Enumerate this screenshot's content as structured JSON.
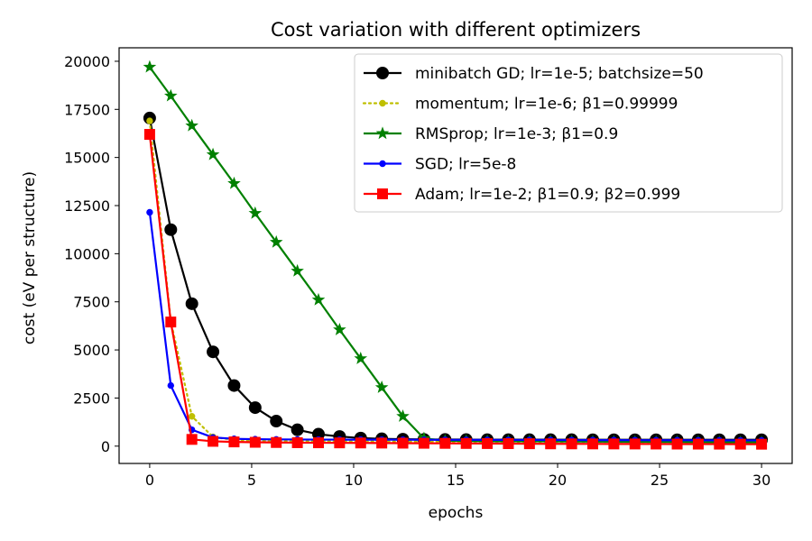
{
  "chart_data": {
    "type": "line",
    "title": "Cost variation with different optimizers",
    "xlabel": "epochs",
    "ylabel": "cost (eV per structure)",
    "xlim": [
      -1.5,
      31.5
    ],
    "ylim": [
      -900,
      20700
    ],
    "xticks": [
      0,
      5,
      10,
      15,
      20,
      25,
      30
    ],
    "yticks": [
      0,
      2500,
      5000,
      7500,
      10000,
      12500,
      15000,
      17500,
      20000
    ],
    "grid": false,
    "legend_position": "top-right",
    "series": [
      {
        "name": "minibatch GD; lr=1e-5;  batchsize=50",
        "color": "#000000",
        "line_style": "solid",
        "marker": "circle",
        "x": [
          0,
          1.0345,
          2.069,
          3.1034,
          4.1379,
          5.1724,
          6.2069,
          7.2414,
          8.2759,
          9.3103,
          10.3448,
          11.3793,
          12.4138,
          13.4483,
          14.4828,
          15.5172,
          16.5517,
          17.5862,
          18.6207,
          19.6552,
          20.6897,
          21.7241,
          22.7586,
          23.7931,
          24.8276,
          25.8621,
          26.8966,
          27.931,
          28.9655,
          30
        ],
        "y": [
          17050,
          11250,
          7400,
          4900,
          3150,
          2000,
          1300,
          850,
          620,
          500,
          420,
          380,
          360,
          350,
          345,
          340,
          338,
          336,
          335,
          334,
          333,
          332,
          331,
          330,
          330,
          330,
          330,
          330,
          330,
          330
        ]
      },
      {
        "name": "momentum;  lr=1e-6;  β1=0.99999",
        "color": "#bfbf00",
        "line_style": "dotted",
        "marker": "point",
        "x": [
          0,
          1.0345,
          2.069,
          3.1034,
          4.1379,
          5.1724,
          6.2069,
          7.2414,
          8.2759,
          9.3103,
          10.3448,
          11.3793,
          12.4138,
          13.4483,
          14.4828,
          15.5172,
          16.5517,
          17.5862,
          18.6207,
          19.6552,
          20.6897,
          21.7241,
          22.7586,
          23.7931,
          24.8276,
          25.8621,
          26.8966,
          27.931,
          28.9655,
          30
        ],
        "y": [
          16900,
          6500,
          1550,
          480,
          320,
          280,
          270,
          260,
          255,
          250,
          248,
          245,
          243,
          240,
          238,
          236,
          234,
          232,
          230,
          228,
          226,
          224,
          222,
          220,
          218,
          216,
          214,
          212,
          210,
          208
        ]
      },
      {
        "name": "RMSprop;  lr=1e-3;  β1=0.9",
        "color": "#008000",
        "line_style": "solid",
        "marker": "star",
        "x": [
          0,
          1.0345,
          2.069,
          3.1034,
          4.1379,
          5.1724,
          6.2069,
          7.2414,
          8.2759,
          9.3103,
          10.3448,
          11.3793,
          12.4138,
          13.4483,
          14.4828,
          15.5172,
          16.5517,
          17.5862,
          18.6207,
          19.6552,
          20.6897,
          21.7241,
          22.7586,
          23.7931,
          24.8276,
          25.8621,
          26.8966,
          27.931,
          28.9655,
          30
        ],
        "y": [
          19700,
          18200,
          16650,
          15150,
          13650,
          12100,
          10600,
          9100,
          7600,
          6050,
          4550,
          3050,
          1550,
          400,
          280,
          270,
          260,
          255,
          250,
          245,
          240,
          235,
          230,
          225,
          220,
          215,
          210,
          205,
          200,
          195
        ]
      },
      {
        "name": "SGD;  lr=5e-8",
        "color": "#0000ff",
        "line_style": "solid",
        "marker": "point",
        "x": [
          0,
          1.0345,
          2.069,
          3.1034,
          4.1379,
          5.1724,
          6.2069,
          7.2414,
          8.2759,
          9.3103,
          10.3448,
          11.3793,
          12.4138,
          13.4483,
          14.4828,
          15.5172,
          16.5517,
          17.5862,
          18.6207,
          19.6552,
          20.6897,
          21.7241,
          22.7586,
          23.7931,
          24.8276,
          25.8621,
          26.8966,
          27.931,
          28.9655,
          30
        ],
        "y": [
          12150,
          3150,
          850,
          450,
          380,
          360,
          350,
          345,
          340,
          338,
          336,
          334,
          332,
          330,
          328,
          326,
          324,
          322,
          320,
          318,
          316,
          314,
          312,
          310,
          308,
          306,
          304,
          302,
          300,
          298
        ]
      },
      {
        "name": "Adam;   lr=1e-2;  β1=0.9;  β2=0.999",
        "color": "#ff0000",
        "line_style": "solid",
        "marker": "square",
        "x": [
          0,
          1.0345,
          2.069,
          3.1034,
          4.1379,
          5.1724,
          6.2069,
          7.2414,
          8.2759,
          9.3103,
          10.3448,
          11.3793,
          12.4138,
          13.4483,
          14.4828,
          15.5172,
          16.5517,
          17.5862,
          18.6207,
          19.6552,
          20.6897,
          21.7241,
          22.7586,
          23.7931,
          24.8276,
          25.8621,
          26.8966,
          27.931,
          28.9655,
          30
        ],
        "y": [
          16200,
          6450,
          350,
          250,
          220,
          200,
          190,
          180,
          175,
          170,
          165,
          160,
          155,
          150,
          145,
          140,
          135,
          130,
          125,
          120,
          118,
          116,
          114,
          112,
          110,
          108,
          106,
          104,
          102,
          100
        ]
      }
    ]
  }
}
